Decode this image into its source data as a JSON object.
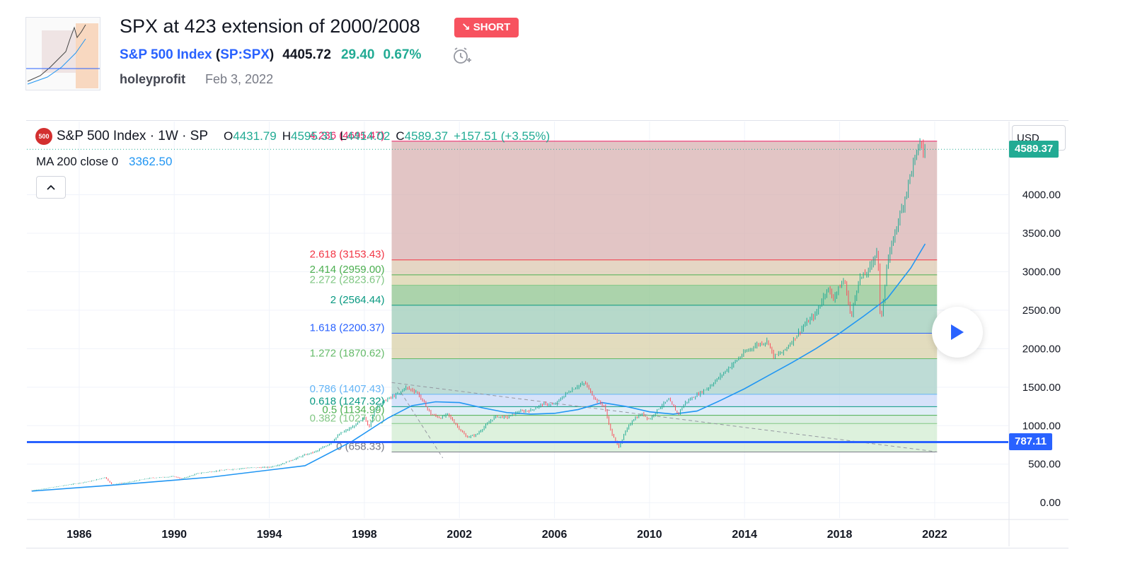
{
  "idea": {
    "title": "SPX at 423 extension of 2000/2008",
    "direction_label": "SHORT",
    "symbol_name": "S&P 500 Index",
    "symbol_ticker": "SP:SPX",
    "last_price": "4405.72",
    "change": "29.40",
    "change_pct": "0.67%",
    "author": "holeyprofit",
    "date": "Feb 3, 2022"
  },
  "legend": {
    "logo_text": "500",
    "title": "S&P 500 Index · 1W · SP",
    "o_label": "O",
    "o_value": "4431.79",
    "h_label": "H",
    "h_value": "4595.31",
    "l_label": "L",
    "l_value": "4414.02",
    "c_label": "C",
    "c_value": "4589.37",
    "change": "+157.51 (+3.55%)",
    "ma_label": "MA 200 close 0",
    "ma_value": "3362.50"
  },
  "currency": "USD",
  "price_tags": {
    "last": "4589.37",
    "hline": "787.11"
  },
  "colors": {
    "up": "#22ab94",
    "down": "#f7525f",
    "ma": "#2196f3",
    "hline": "#2962ff",
    "short_badge": "#f7525f"
  },
  "icons": {
    "alarm": "alarm-clock-plus-icon",
    "collapse": "chevron-up-icon",
    "play": "play-icon",
    "direction": "arrow-down-right-icon"
  },
  "chart_data": {
    "type": "line",
    "scale": "linear",
    "y_ticks": [
      "0.00",
      "500.00",
      "1000.00",
      "1500.00",
      "2000.00",
      "2500.00",
      "3000.00",
      "3500.00",
      "4000.00"
    ],
    "x_ticks": [
      "1986",
      "1990",
      "1994",
      "1998",
      "2002",
      "2006",
      "2010",
      "2014",
      "2018",
      "2022"
    ],
    "ylim": [
      -200,
      4950
    ],
    "xlim": [
      1984.3,
      2025.6
    ],
    "series": [
      {
        "key": "price",
        "x": [
          1984.5,
          1985,
          1986,
          1987.0,
          1987.6,
          1987.85,
          1988.5,
          1989.5,
          1990.5,
          1990.8,
          1991.5,
          1992.5,
          1993.5,
          1994.5,
          1995,
          1995.5,
          1996,
          1996.5,
          1997,
          1997.5,
          1998,
          1998.5,
          1998.7,
          1999,
          1999.5,
          2000.0,
          2000.2,
          2000.7,
          2001.0,
          2001.3,
          2001.7,
          2002.0,
          2002.5,
          2002.8,
          2003.2,
          2003.6,
          2004.0,
          2004.5,
          2005.0,
          2005.5,
          2006.0,
          2006.5,
          2007.0,
          2007.5,
          2007.8,
          2008.2,
          2008.6,
          2008.9,
          2009.2,
          2009.5,
          2009.8,
          2010.2,
          2010.5,
          2010.9,
          2011.3,
          2011.7,
          2012.0,
          2012.5,
          2013.0,
          2013.5,
          2014.0,
          2014.5,
          2015.0,
          2015.5,
          2015.7,
          2016.1,
          2016.5,
          2017.0,
          2017.5,
          2018.0,
          2018.2,
          2018.7,
          2018.98,
          2019.3,
          2019.7,
          2020.1,
          2020.22,
          2020.5,
          2020.9,
          2021.2,
          2021.5,
          2021.9,
          2022.0,
          2022.1
        ],
        "y": [
          160,
          180,
          230,
          280,
          330,
          240,
          260,
          320,
          340,
          310,
          380,
          420,
          450,
          460,
          500,
          560,
          620,
          670,
          760,
          900,
          980,
          1100,
          990,
          1250,
          1350,
          1420,
          1500,
          1440,
          1300,
          1150,
          1100,
          1150,
          960,
          850,
          880,
          1000,
          1120,
          1110,
          1180,
          1200,
          1280,
          1270,
          1420,
          1520,
          1550,
          1350,
          1250,
          900,
          720,
          930,
          1080,
          1150,
          1080,
          1230,
          1340,
          1150,
          1300,
          1400,
          1500,
          1650,
          1800,
          1950,
          2050,
          2100,
          1900,
          1950,
          2100,
          2300,
          2450,
          2800,
          2650,
          2900,
          2400,
          2900,
          3000,
          3300,
          2300,
          3100,
          3600,
          3900,
          4300,
          4700,
          4550,
          4589
        ]
      },
      {
        "key": "ma200",
        "x": [
          1984.5,
          1988,
          1992,
          1996,
          1998,
          1999.5,
          2000.5,
          2001.5,
          2002.5,
          2003.5,
          2004.5,
          2005.5,
          2006.5,
          2007.5,
          2008.5,
          2009.5,
          2010.5,
          2011.5,
          2012.5,
          2013.5,
          2014.5,
          2015.5,
          2016.5,
          2017.5,
          2018.5,
          2019.5,
          2020.5,
          2021.5,
          2022.1
        ],
        "y": [
          150,
          230,
          330,
          480,
          800,
          1100,
          1260,
          1310,
          1300,
          1230,
          1170,
          1150,
          1160,
          1210,
          1300,
          1250,
          1180,
          1150,
          1190,
          1330,
          1480,
          1650,
          1820,
          2000,
          2200,
          2420,
          2650,
          3050,
          3362
        ]
      }
    ],
    "fibonacci": {
      "x_start": 1999.65,
      "x_end": 2022.6,
      "levels": [
        {
          "label": "4.236 (4695.47)",
          "ratio": 4.236,
          "price": 4695.47,
          "color": "#e91e63",
          "fill": "#d8b2b2"
        },
        {
          "label": "2.618 (3153.43)",
          "ratio": 2.618,
          "price": 3153.43,
          "color": "#f23645",
          "fill": "#dcc8b0"
        },
        {
          "label": "2.414 (2959.00)",
          "ratio": 2.414,
          "price": 2959.0,
          "color": "#4caf50",
          "fill": "#d8d2a8"
        },
        {
          "label": "2.272 (2823.67)",
          "ratio": 2.272,
          "price": 2823.67,
          "color": "#81c784",
          "fill": "#8fc48f"
        },
        {
          "label": "2 (2564.44)",
          "ratio": 2.0,
          "price": 2564.44,
          "color": "#089981",
          "fill": "#9dccb8"
        },
        {
          "label": "1.618 (2200.37)",
          "ratio": 1.618,
          "price": 2200.37,
          "color": "#2962ff",
          "fill": "#d8d0a8"
        },
        {
          "label": "1.272 (1870.62)",
          "ratio": 1.272,
          "price": 1870.62,
          "color": "#66bb6a",
          "fill": "#a8d0c8"
        },
        {
          "label": "0.786 (1407.43)",
          "ratio": 0.786,
          "price": 1407.43,
          "color": "#64b5f6",
          "fill": "#c8d8f8"
        },
        {
          "label": "0.618 (1247.32)",
          "ratio": 0.618,
          "price": 1247.32,
          "color": "#089981",
          "fill": "#d4e8f4"
        },
        {
          "label": "0.5 (1134.99)",
          "ratio": 0.5,
          "price": 1134.99,
          "color": "#4caf50",
          "fill": "#cfe8d8"
        },
        {
          "label": "0.382 (1027.30)",
          "ratio": 0.382,
          "price": 1027.3,
          "color": "#81c784",
          "fill": "#d2ecd2"
        },
        {
          "label": "0 (658.33)",
          "ratio": 0,
          "price": 658.33,
          "color": "#787b86",
          "fill": "#d8eed8"
        }
      ]
    },
    "hline": {
      "price": 787.11,
      "color": "#2962ff"
    },
    "trendlines": [
      {
        "x": [
          1999.65,
          2022.6
        ],
        "y": [
          1560,
          660
        ],
        "color": "#9598a1",
        "style": "dashed"
      },
      {
        "x": [
          1999.9,
          2001.8
        ],
        "y": [
          1500,
          580
        ],
        "color": "#9598a1",
        "style": "dashed"
      }
    ]
  }
}
